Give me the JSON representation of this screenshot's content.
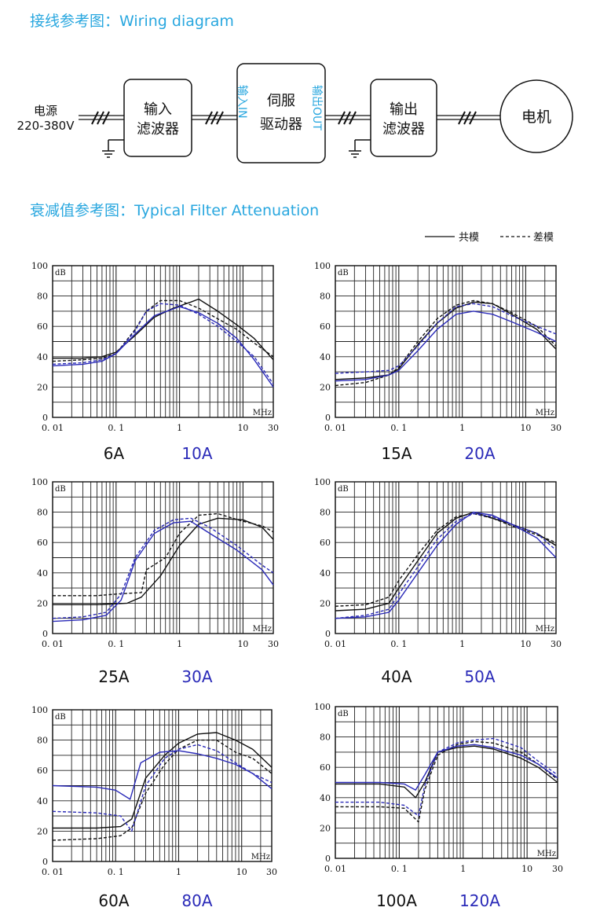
{
  "headings": {
    "wiring": "接线参考图：Wiring diagram",
    "attenuation": "衰减值参考图：Typical Filter Attenuation"
  },
  "wiring": {
    "power_label_1": "电源",
    "power_label_2": "220-380V",
    "input_filter_1": "输入",
    "input_filter_2": "滤波器",
    "servo_1": "伺服",
    "servo_2": "驱动器",
    "servo_in": "输入IN",
    "servo_out": "输出OUT",
    "output_filter_1": "输出",
    "output_filter_2": "滤波器",
    "motor": "电机"
  },
  "legend": {
    "common": "共模",
    "differential": "差模"
  },
  "colors": {
    "accent": "#29a7df",
    "black_series": "#111111",
    "blue_series": "#2a2ab8"
  },
  "chart_data": [
    {
      "type": "line",
      "ylabel": "dB",
      "xlabel": "MHz",
      "xscale": "log",
      "xlim": [
        0.01,
        30
      ],
      "ylim": [
        0,
        100
      ],
      "yticks": [
        "0",
        "20",
        "40",
        "60",
        "80",
        "100"
      ],
      "xticks": [
        "0. 01",
        "0. 1",
        "1",
        "10",
        "30"
      ],
      "caption_black": "6A",
      "caption_blue": "10A",
      "series": [
        {
          "color": "black",
          "style": "solid",
          "x": [
            0.01,
            0.03,
            0.06,
            0.1,
            0.2,
            0.4,
            0.8,
            1.5,
            2,
            4,
            8,
            15,
            30
          ],
          "y": [
            39,
            39,
            40,
            43,
            54,
            66,
            72,
            76,
            78,
            70,
            61,
            52,
            38
          ]
        },
        {
          "color": "black",
          "style": "dashed",
          "x": [
            0.01,
            0.03,
            0.06,
            0.1,
            0.2,
            0.3,
            0.5,
            1,
            2,
            4,
            8,
            15,
            30
          ],
          "y": [
            37,
            38,
            39,
            42,
            58,
            70,
            77,
            77,
            72,
            65,
            58,
            49,
            40
          ]
        },
        {
          "color": "blue",
          "style": "solid",
          "x": [
            0.01,
            0.03,
            0.06,
            0.1,
            0.2,
            0.4,
            1,
            2,
            4,
            8,
            15,
            30
          ],
          "y": [
            34,
            35,
            37,
            42,
            55,
            67,
            73,
            69,
            62,
            52,
            38,
            20
          ]
        },
        {
          "color": "blue",
          "style": "dashed",
          "x": [
            0.01,
            0.03,
            0.06,
            0.1,
            0.2,
            0.3,
            0.5,
            1,
            2,
            4,
            8,
            15,
            30
          ],
          "y": [
            35,
            36,
            38,
            42,
            57,
            70,
            75,
            74,
            68,
            60,
            50,
            40,
            22
          ]
        }
      ]
    },
    {
      "type": "line",
      "ylabel": "dB",
      "xlabel": "MHz",
      "xscale": "log",
      "xlim": [
        0.01,
        30
      ],
      "ylim": [
        0,
        100
      ],
      "yticks": [
        "0",
        "20",
        "40",
        "60",
        "80",
        "100"
      ],
      "xticks": [
        "0. 01",
        "0. 1",
        "1",
        "10",
        "30"
      ],
      "caption_black": "15A",
      "caption_blue": "20A",
      "series": [
        {
          "color": "black",
          "style": "solid",
          "x": [
            0.01,
            0.03,
            0.07,
            0.1,
            0.2,
            0.4,
            0.8,
            1.5,
            3,
            6,
            15,
            30
          ],
          "y": [
            25,
            26,
            28,
            32,
            48,
            62,
            72,
            76,
            75,
            68,
            58,
            45
          ]
        },
        {
          "color": "black",
          "style": "dashed",
          "x": [
            0.01,
            0.03,
            0.07,
            0.1,
            0.2,
            0.4,
            0.8,
            1.5,
            3,
            6,
            15,
            30
          ],
          "y": [
            21,
            23,
            28,
            33,
            50,
            65,
            74,
            77,
            75,
            69,
            60,
            47
          ]
        },
        {
          "color": "blue",
          "style": "solid",
          "x": [
            0.01,
            0.03,
            0.07,
            0.1,
            0.2,
            0.4,
            0.8,
            1.5,
            3,
            6,
            15,
            30
          ],
          "y": [
            24,
            25,
            28,
            31,
            44,
            58,
            68,
            70,
            68,
            63,
            56,
            50
          ]
        },
        {
          "color": "blue",
          "style": "dashed",
          "x": [
            0.01,
            0.03,
            0.07,
            0.1,
            0.2,
            0.4,
            0.8,
            1.5,
            3,
            6,
            15,
            30
          ],
          "y": [
            29,
            30,
            31,
            34,
            47,
            62,
            73,
            75,
            73,
            67,
            60,
            55
          ]
        }
      ]
    },
    {
      "type": "line",
      "ylabel": "dB",
      "xlabel": "MHz",
      "xscale": "log",
      "xlim": [
        0.01,
        30
      ],
      "ylim": [
        0,
        100
      ],
      "yticks": [
        "0",
        "20",
        "40",
        "60",
        "80",
        "100"
      ],
      "xticks": [
        "0. 01",
        "0. 1",
        "1",
        "10",
        "30"
      ],
      "caption_black": "25A",
      "caption_blue": "30A",
      "series": [
        {
          "color": "black",
          "style": "solid",
          "x": [
            0.01,
            0.05,
            0.15,
            0.25,
            0.5,
            1,
            2,
            4,
            10,
            20,
            30
          ],
          "y": [
            19,
            19,
            20,
            24,
            38,
            58,
            72,
            76,
            75,
            70,
            62
          ]
        },
        {
          "color": "black",
          "style": "dashed",
          "x": [
            0.01,
            0.05,
            0.1,
            0.25,
            0.3,
            0.6,
            1,
            2,
            4,
            10,
            20,
            30
          ],
          "y": [
            25,
            25,
            26,
            27,
            42,
            50,
            66,
            78,
            79,
            74,
            71,
            67
          ]
        },
        {
          "color": "blue",
          "style": "solid",
          "x": [
            0.01,
            0.03,
            0.07,
            0.12,
            0.2,
            0.4,
            0.8,
            1.5,
            3,
            8,
            20,
            30
          ],
          "y": [
            8,
            9,
            12,
            22,
            48,
            66,
            73,
            74,
            66,
            55,
            42,
            32
          ]
        },
        {
          "color": "blue",
          "style": "dashed",
          "x": [
            0.01,
            0.03,
            0.07,
            0.12,
            0.2,
            0.4,
            0.8,
            1.5,
            3,
            8,
            20,
            30
          ],
          "y": [
            10,
            11,
            14,
            26,
            50,
            68,
            75,
            76,
            70,
            58,
            45,
            40
          ]
        }
      ]
    },
    {
      "type": "line",
      "ylabel": "dB",
      "xlabel": "MHz",
      "xscale": "log",
      "xlim": [
        0.01,
        30
      ],
      "ylim": [
        0,
        100
      ],
      "yticks": [
        "0",
        "20",
        "40",
        "60",
        "80",
        "100"
      ],
      "xticks": [
        "0. 01",
        "0. 1",
        "1",
        "10",
        "30"
      ],
      "caption_black": "40A",
      "caption_blue": "50A",
      "series": [
        {
          "color": "black",
          "style": "solid",
          "x": [
            0.01,
            0.03,
            0.07,
            0.1,
            0.2,
            0.4,
            0.8,
            1.5,
            3,
            6,
            15,
            30
          ],
          "y": [
            15,
            16,
            20,
            30,
            48,
            66,
            76,
            80,
            76,
            72,
            66,
            58
          ]
        },
        {
          "color": "black",
          "style": "dashed",
          "x": [
            0.01,
            0.03,
            0.07,
            0.1,
            0.2,
            0.4,
            0.8,
            1.5,
            3,
            6,
            15,
            30
          ],
          "y": [
            18,
            19,
            24,
            35,
            52,
            68,
            77,
            79,
            76,
            71,
            65,
            60
          ]
        },
        {
          "color": "blue",
          "style": "solid",
          "x": [
            0.01,
            0.03,
            0.07,
            0.1,
            0.2,
            0.4,
            0.8,
            1.5,
            3,
            6,
            15,
            30
          ],
          "y": [
            10,
            11,
            14,
            22,
            40,
            58,
            72,
            80,
            78,
            72,
            63,
            50
          ]
        },
        {
          "color": "blue",
          "style": "dashed",
          "x": [
            0.01,
            0.03,
            0.07,
            0.1,
            0.2,
            0.4,
            0.8,
            1.5,
            3,
            6,
            15,
            30
          ],
          "y": [
            10,
            12,
            16,
            26,
            44,
            62,
            74,
            79,
            77,
            72,
            66,
            55
          ]
        }
      ]
    },
    {
      "type": "line",
      "ylabel": "dB",
      "xlabel": "MHz",
      "xscale": "log",
      "xlim": [
        0.01,
        30
      ],
      "ylim": [
        0,
        100
      ],
      "yticks": [
        "0",
        "20",
        "40",
        "60",
        "80",
        "100"
      ],
      "xticks": [
        "0. 01",
        "0. 1",
        "1",
        "10",
        "30"
      ],
      "caption_black": "60A",
      "caption_blue": "80A",
      "series": [
        {
          "color": "black",
          "style": "solid",
          "x": [
            0.01,
            0.05,
            0.12,
            0.18,
            0.3,
            0.6,
            1,
            2,
            4,
            8,
            15,
            30
          ],
          "y": [
            22,
            22,
            23,
            28,
            55,
            70,
            78,
            84,
            85,
            80,
            74,
            62
          ]
        },
        {
          "color": "black",
          "style": "dashed",
          "x": [
            0.01,
            0.05,
            0.12,
            0.18,
            0.3,
            0.6,
            1,
            2,
            4,
            8,
            15,
            30
          ],
          "y": [
            14,
            15,
            17,
            22,
            45,
            64,
            74,
            80,
            80,
            72,
            68,
            58
          ]
        },
        {
          "color": "blue",
          "style": "solid",
          "x": [
            0.01,
            0.05,
            0.1,
            0.17,
            0.25,
            0.5,
            1,
            2,
            4,
            8,
            15,
            30
          ],
          "y": [
            50,
            49,
            47,
            41,
            65,
            72,
            73,
            71,
            68,
            64,
            58,
            48
          ]
        },
        {
          "color": "blue",
          "style": "dashed",
          "x": [
            0.01,
            0.05,
            0.12,
            0.18,
            0.3,
            0.6,
            1,
            2,
            4,
            8,
            15,
            30
          ],
          "y": [
            33,
            32,
            30,
            20,
            50,
            68,
            74,
            77,
            73,
            65,
            58,
            52
          ]
        }
      ]
    },
    {
      "type": "line",
      "ylabel": "dB",
      "xlabel": "MHz",
      "xscale": "log",
      "xlim": [
        0.01,
        30
      ],
      "ylim": [
        0,
        100
      ],
      "yticks": [
        "0",
        "20",
        "40",
        "60",
        "80",
        "100"
      ],
      "xticks": [
        "0. 01",
        "0. 1",
        "1",
        "10",
        "30"
      ],
      "caption_black": "100A",
      "caption_blue": "120A",
      "series": [
        {
          "color": "black",
          "style": "solid",
          "x": [
            0.01,
            0.05,
            0.12,
            0.18,
            0.25,
            0.4,
            0.8,
            1.5,
            3,
            8,
            15,
            30
          ],
          "y": [
            49,
            49,
            47,
            40,
            50,
            70,
            73,
            74,
            72,
            66,
            60,
            50
          ]
        },
        {
          "color": "black",
          "style": "dashed",
          "x": [
            0.01,
            0.05,
            0.12,
            0.2,
            0.25,
            0.4,
            0.8,
            1.5,
            3,
            8,
            15,
            30
          ],
          "y": [
            34,
            34,
            33,
            24,
            45,
            68,
            75,
            77,
            76,
            70,
            62,
            52
          ]
        },
        {
          "color": "blue",
          "style": "solid",
          "x": [
            0.01,
            0.05,
            0.12,
            0.18,
            0.25,
            0.4,
            0.8,
            1.5,
            3,
            8,
            15,
            30
          ],
          "y": [
            50,
            50,
            49,
            45,
            55,
            70,
            74,
            75,
            73,
            68,
            62,
            53
          ]
        },
        {
          "color": "blue",
          "style": "dashed",
          "x": [
            0.01,
            0.05,
            0.12,
            0.2,
            0.25,
            0.4,
            0.8,
            1.5,
            3,
            8,
            15,
            30
          ],
          "y": [
            37,
            37,
            35,
            28,
            48,
            70,
            76,
            78,
            79,
            73,
            64,
            55
          ]
        }
      ]
    }
  ]
}
